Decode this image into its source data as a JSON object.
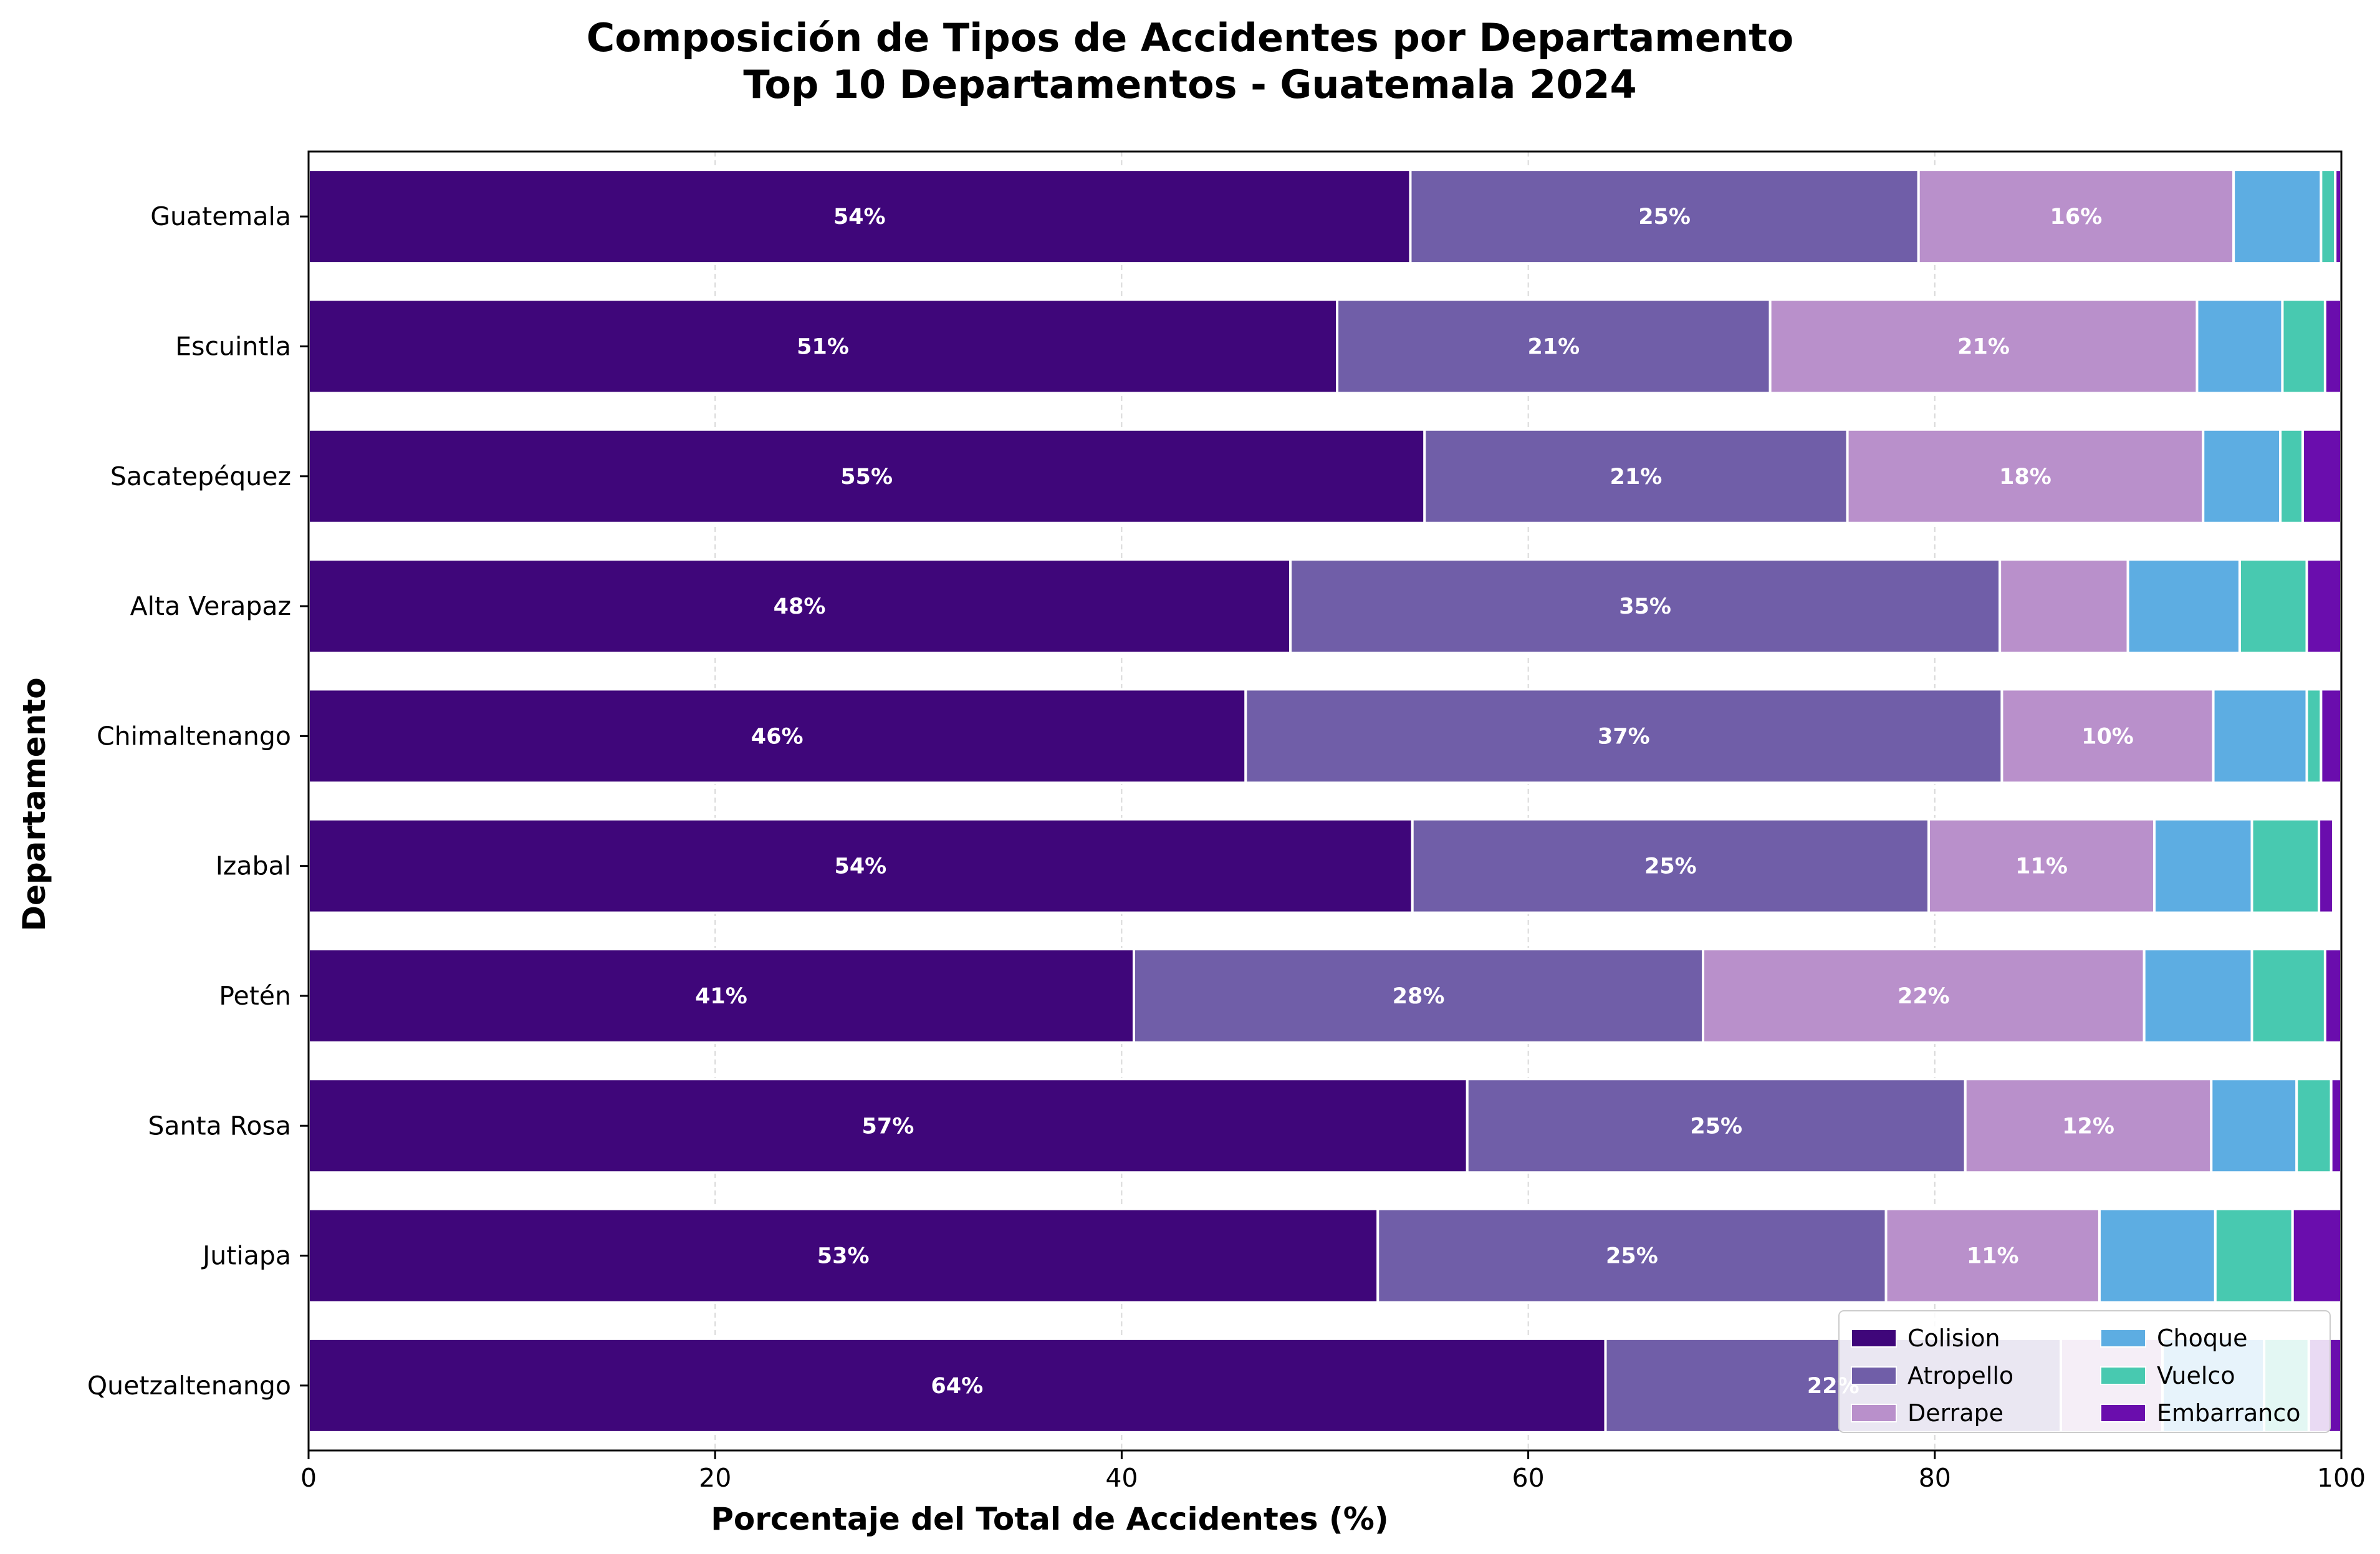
{
  "chart_data": {
    "type": "bar",
    "orientation": "horizontal",
    "stacked": true,
    "title": "Composición de Tipos de Accidentes por Departamento",
    "subtitle": "Top 10 Departamentos - Guatemala 2024",
    "xlabel": "Porcentaje del Total de Accidentes (%)",
    "ylabel": "Departamento",
    "xlim": [
      0,
      100
    ],
    "xticks": [
      0,
      20,
      40,
      60,
      80,
      100
    ],
    "grid": "x, dashed",
    "legend_position": "lower-right",
    "label_threshold": 10,
    "categories": [
      "Guatemala",
      "Escuintla",
      "Sacatepéquez",
      "Alta Verapaz",
      "Chimaltenango",
      "Izabal",
      "Petén",
      "Santa Rosa",
      "Jutiapa",
      "Quetzaltenango"
    ],
    "series": [
      {
        "name": "Colision",
        "color": "#3f067a",
        "values": [
          54.2,
          50.6,
          54.9,
          48.3,
          46.1,
          54.3,
          40.6,
          57.0,
          52.6,
          63.8
        ]
      },
      {
        "name": "Atropello",
        "color": "#705ea8",
        "values": [
          25.0,
          21.3,
          20.8,
          34.9,
          37.2,
          25.4,
          28.0,
          24.5,
          25.0,
          22.4
        ]
      },
      {
        "name": "Derrape",
        "color": "#b990cb",
        "values": [
          15.5,
          21.0,
          17.5,
          6.3,
          10.4,
          11.1,
          21.7,
          12.1,
          10.5,
          5.0
        ]
      },
      {
        "name": "Choque",
        "color": "#5dade2",
        "values": [
          4.3,
          4.2,
          3.8,
          5.5,
          4.6,
          4.8,
          5.3,
          4.2,
          5.7,
          5.0
        ]
      },
      {
        "name": "Vuelco",
        "color": "#48c9b0",
        "values": [
          0.7,
          2.1,
          1.1,
          3.3,
          0.7,
          3.3,
          3.6,
          1.7,
          3.8,
          2.2
        ]
      },
      {
        "name": "Embarranco",
        "color": "#6a0dad",
        "values": [
          0.3,
          0.8,
          1.9,
          1.7,
          1.0,
          0.7,
          0.8,
          0.5,
          2.4,
          1.6
        ]
      }
    ]
  }
}
